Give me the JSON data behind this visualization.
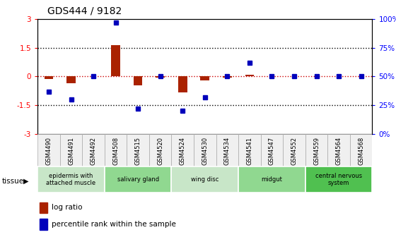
{
  "title": "GDS444 / 9182",
  "samples": [
    "GSM4490",
    "GSM4491",
    "GSM4492",
    "GSM4508",
    "GSM4515",
    "GSM4520",
    "GSM4524",
    "GSM4530",
    "GSM4534",
    "GSM4541",
    "GSM4547",
    "GSM4552",
    "GSM4559",
    "GSM4564",
    "GSM4568"
  ],
  "log_ratio": [
    -0.15,
    -0.35,
    0.0,
    1.65,
    -0.45,
    -0.05,
    -0.85,
    -0.2,
    -0.05,
    0.1,
    0.0,
    0.0,
    0.0,
    0.0,
    0.0
  ],
  "percentile": [
    37,
    30,
    50,
    97,
    22,
    50,
    20,
    32,
    50,
    62,
    50,
    50,
    50,
    50,
    50
  ],
  "ylim_left": [
    -3,
    3
  ],
  "ylim_right": [
    0,
    100
  ],
  "tissue_groups": [
    {
      "label": "epidermis with\nattached muscle",
      "start": 0,
      "end": 3,
      "color": "#c8e6c8"
    },
    {
      "label": "salivary gland",
      "start": 3,
      "end": 6,
      "color": "#90d890"
    },
    {
      "label": "wing disc",
      "start": 6,
      "end": 9,
      "color": "#c8e6c8"
    },
    {
      "label": "midgut",
      "start": 9,
      "end": 12,
      "color": "#90d890"
    },
    {
      "label": "central nervous\nsystem",
      "start": 12,
      "end": 15,
      "color": "#50c050"
    }
  ],
  "bar_color": "#aa2200",
  "dot_color": "#0000bb",
  "zero_line_color": "#cc0000",
  "dotted_line_color": "#000000",
  "bg_color": "#ffffff",
  "legend_red": "#aa2200",
  "legend_blue": "#0000bb"
}
